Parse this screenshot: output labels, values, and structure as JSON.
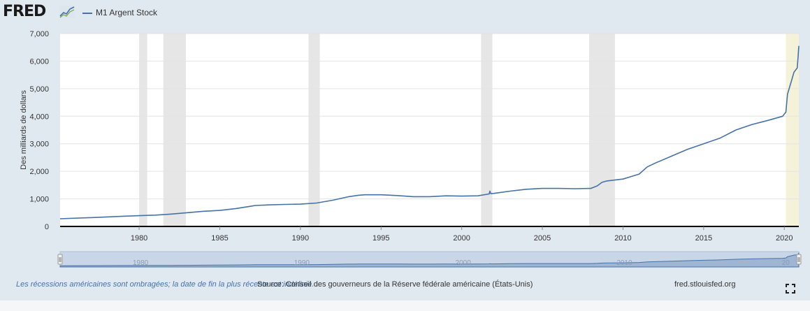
{
  "brand": {
    "logo_text": "FRED",
    "logo_icon": "line-chart-icon"
  },
  "legend": {
    "series_label": "M1 Argent Stock",
    "series_color": "#4572a7"
  },
  "footer": {
    "recession_note": "Les récessions américaines sont ombragées; la date de fin la plus récente est indéfinie.",
    "source": "Source: Conseil des gouverneurs de la Réserve fédérale américaine (États-Unis)",
    "site": "fred.stlouisfed.org",
    "expand_icon": "expand-icon"
  },
  "chart_data": {
    "type": "line",
    "ylabel": "Des milliards de dollars",
    "ylim": [
      0,
      7000
    ],
    "yticks": [
      "0",
      "1,000",
      "2,000",
      "3,000",
      "4,000",
      "5,000",
      "6,000",
      "7,000"
    ],
    "ytick_values": [
      0,
      1000,
      2000,
      3000,
      4000,
      5000,
      6000,
      7000
    ],
    "xlim": [
      1975.1,
      2020.9
    ],
    "xticks": [
      "1980",
      "1985",
      "1990",
      "1995",
      "2000",
      "2005",
      "2010",
      "2015",
      "2020"
    ],
    "xtick_values": [
      1980,
      1985,
      1990,
      1995,
      2000,
      2005,
      2010,
      2015,
      2020
    ],
    "grid": true,
    "series": [
      {
        "name": "M1 Argent Stock",
        "color": "#4572a7",
        "x": [
          1975.1,
          1977,
          1979,
          1980,
          1981,
          1982,
          1983,
          1984,
          1985,
          1986,
          1987,
          1987.2,
          1988,
          1989,
          1990,
          1991,
          1992,
          1993,
          1993.6,
          1994,
          1995,
          1996,
          1997,
          1998,
          1999,
          2000,
          2001,
          2001.7,
          2001.75,
          2001.8,
          2002,
          2003,
          2004,
          2005,
          2006,
          2007,
          2008,
          2008.4,
          2008.7,
          2009,
          2010,
          2011,
          2011.5,
          2012,
          2013,
          2014,
          2015,
          2016,
          2017,
          2018,
          2019,
          2019.9,
          2020.1,
          2020.2,
          2020.4,
          2020.5,
          2020.6,
          2020.8,
          2020.85,
          2020.9
        ],
        "y": [
          280,
          320,
          370,
          390,
          410,
          450,
          500,
          550,
          580,
          650,
          740,
          760,
          780,
          800,
          810,
          850,
          950,
          1080,
          1130,
          1150,
          1150,
          1120,
          1080,
          1080,
          1110,
          1100,
          1110,
          1180,
          1280,
          1190,
          1200,
          1280,
          1350,
          1380,
          1380,
          1370,
          1380,
          1470,
          1600,
          1650,
          1720,
          1900,
          2160,
          2300,
          2550,
          2800,
          3000,
          3200,
          3500,
          3700,
          3850,
          4000,
          4150,
          4800,
          5200,
          5400,
          5600,
          5750,
          6100,
          6550
        ]
      }
    ],
    "recessions": [
      [
        1980.0,
        1980.5
      ],
      [
        1981.5,
        1982.9
      ],
      [
        1990.5,
        1991.2
      ],
      [
        2001.2,
        2001.9
      ],
      [
        2007.9,
        2009.5
      ],
      [
        2020.1,
        2020.9
      ]
    ],
    "navigator_ticks": [
      "1980",
      "1990",
      "2000",
      "2010",
      "20"
    ]
  }
}
